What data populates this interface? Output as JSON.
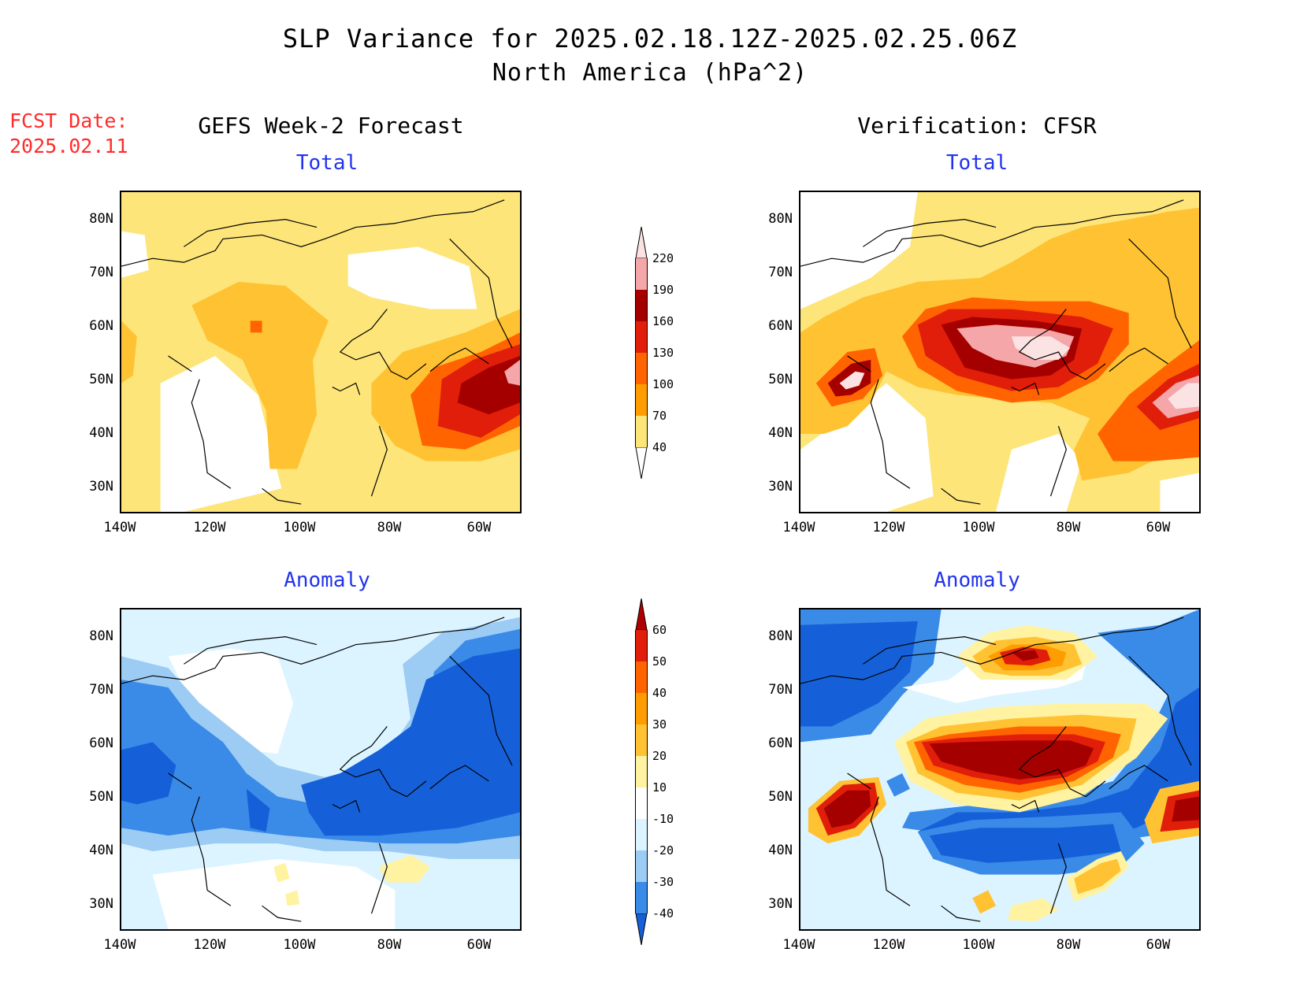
{
  "header": {
    "title": "SLP Variance for 2025.02.18.12Z-2025.02.25.06Z",
    "subtitle": "North America (hPa^2)",
    "fcst_label": "FCST Date:",
    "fcst_date": "2025.02.11"
  },
  "columns": {
    "left": "GEFS Week-2 Forecast",
    "right": "Verification: CFSR"
  },
  "panel_titles": {
    "total": "Total",
    "anomaly": "Anomaly"
  },
  "axes": {
    "lat_labels": [
      "80N",
      "70N",
      "60N",
      "50N",
      "40N",
      "30N"
    ],
    "lon_labels": [
      "140W",
      "120W",
      "100W",
      "80W",
      "60W"
    ]
  },
  "colorbar_total": {
    "levels": [
      "40",
      "70",
      "100",
      "130",
      "160",
      "190",
      "220"
    ],
    "colors": [
      "#fde57a",
      "#ffc232",
      "#ff9c00",
      "#ff6400",
      "#e01e0a",
      "#a50000",
      "#f4a6a8",
      "#fce3e3"
    ]
  },
  "colorbar_anomaly": {
    "levels": [
      "-40",
      "-30",
      "-20",
      "-10",
      "10",
      "20",
      "30",
      "40",
      "50",
      "60"
    ],
    "colors": [
      "#1560d8",
      "#3a8ae8",
      "#9ccbf4",
      "#dcf4ff",
      "#ffffff",
      "#fff2a0",
      "#ffc232",
      "#ff9c00",
      "#ff6400",
      "#e01e0a",
      "#b00000"
    ]
  }
}
